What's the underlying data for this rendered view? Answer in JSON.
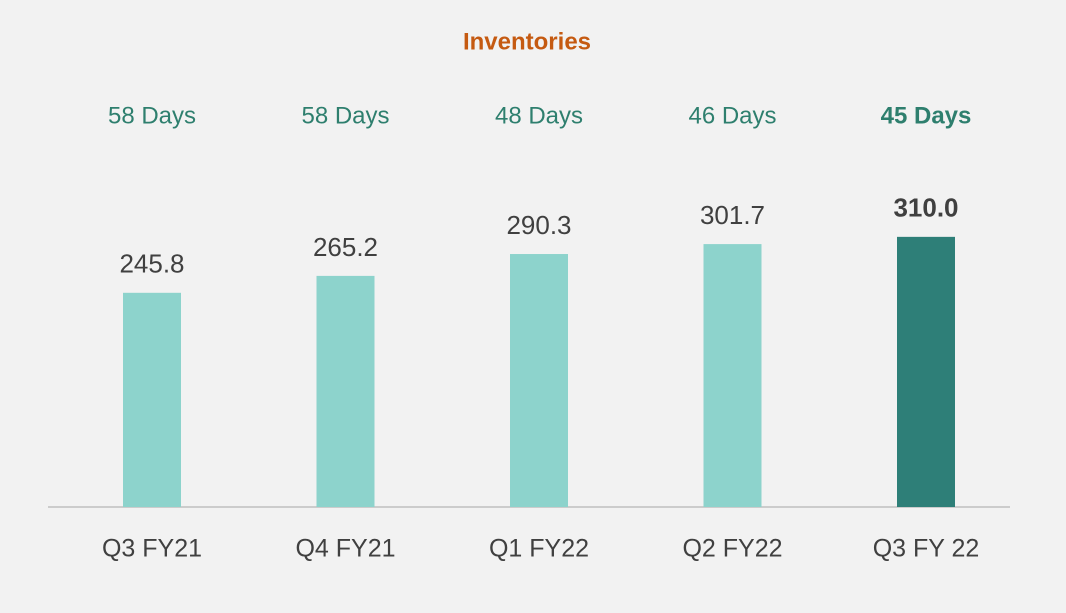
{
  "chart_data": {
    "type": "bar",
    "title": "Inventories",
    "categories": [
      "Q3 FY21",
      "Q4 FY21",
      "Q1 FY22",
      "Q2 FY22",
      "Q3 FY 22"
    ],
    "values": [
      245.8,
      265.2,
      290.3,
      301.7,
      310.0
    ],
    "value_labels": [
      "245.8",
      "265.2",
      "290.3",
      "301.7",
      "310.0"
    ],
    "annotations": [
      "58 Days",
      "58 Days",
      "48 Days",
      "46 Days",
      "45 Days"
    ],
    "colors": [
      "#8dd3cc",
      "#8dd3cc",
      "#8dd3cc",
      "#8dd3cc",
      "#2e7f78"
    ],
    "ylim": [
      0,
      350
    ]
  }
}
